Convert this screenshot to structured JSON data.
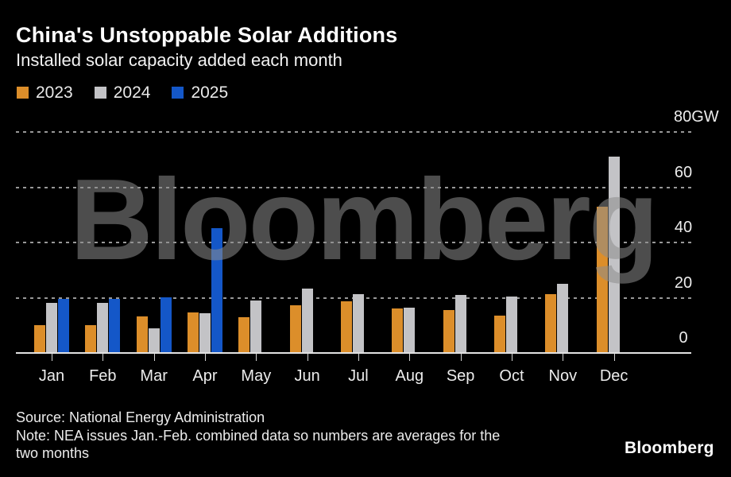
{
  "header": {
    "title": "China's Unstoppable Solar Additions",
    "subtitle": "Installed solar capacity added each month"
  },
  "legend": [
    {
      "label": "2023",
      "color": "#DC8E2A"
    },
    {
      "label": "2024",
      "color": "#C3C3C6"
    },
    {
      "label": "2025",
      "color": "#1457C8"
    }
  ],
  "watermark": "Bloomberg",
  "chart_data": {
    "type": "bar",
    "title": "China's Unstoppable Solar Additions",
    "subtitle": "Installed solar capacity added each month",
    "unit": "GW",
    "categories": [
      "Jan",
      "Feb",
      "Mar",
      "Apr",
      "May",
      "Jun",
      "Jul",
      "Aug",
      "Sep",
      "Oct",
      "Nov",
      "Dec"
    ],
    "series": [
      {
        "name": "2023",
        "color": "#DC8E2A",
        "values": [
          10.2,
          10.2,
          13.3,
          14.7,
          12.9,
          17.2,
          18.7,
          16.0,
          15.6,
          13.6,
          21.3,
          53.0
        ]
      },
      {
        "name": "2024",
        "color": "#C3C3C6",
        "values": [
          18.1,
          18.1,
          9.0,
          14.4,
          19.0,
          23.3,
          21.2,
          16.5,
          20.9,
          20.4,
          25.0,
          71.2
        ]
      },
      {
        "name": "2025",
        "color": "#1457C8",
        "values": [
          19.7,
          19.7,
          20.2,
          45.2,
          null,
          null,
          null,
          null,
          null,
          null,
          null,
          null
        ]
      }
    ],
    "y_axis": {
      "ticks": [
        0,
        20,
        40,
        60,
        80
      ],
      "top_tick_label": "80GW",
      "ylim": [
        0,
        80
      ]
    },
    "grid": "dashed-horizontal",
    "legend_position": "top-left",
    "gridline_color": "#989898",
    "background_color": "#000000"
  },
  "footer": {
    "source": "Source: National Energy Administration",
    "note_lines": [
      "Note: NEA issues Jan.-Feb. combined data so numbers are averages for the",
      "two months"
    ],
    "logo": "Bloomberg"
  }
}
